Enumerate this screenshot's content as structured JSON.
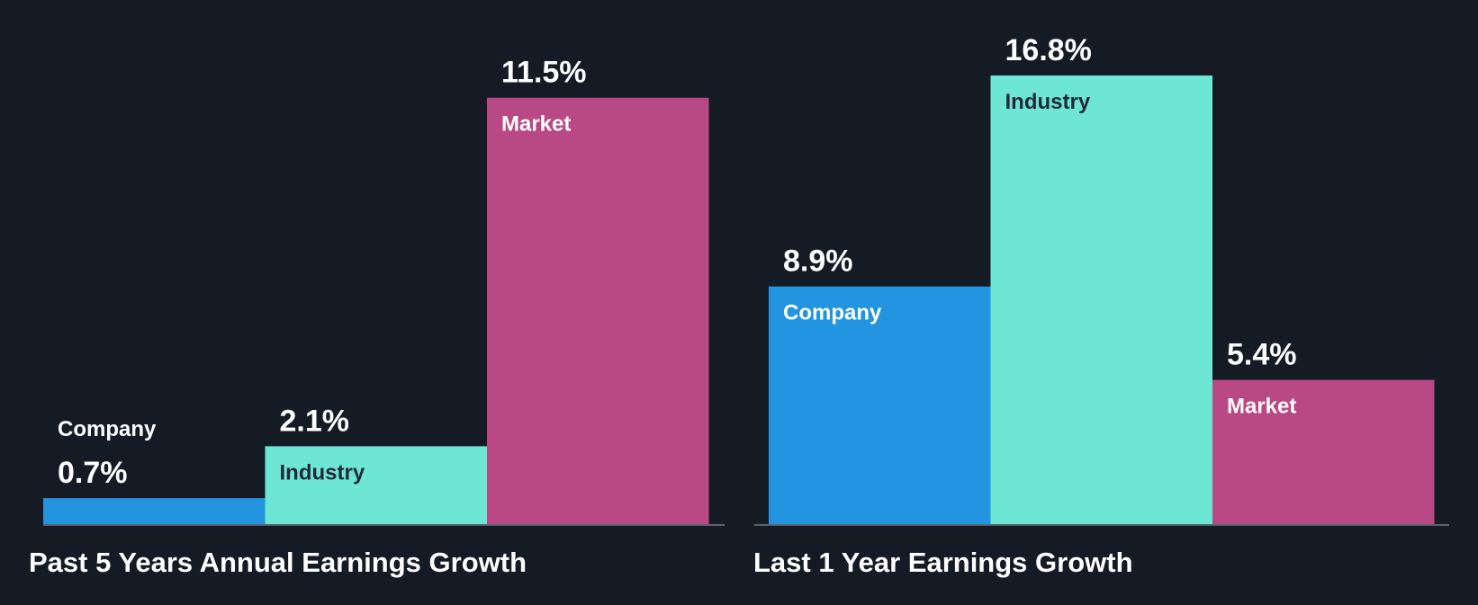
{
  "colors": {
    "background": "#151b24",
    "company": "#2394e0",
    "industry": "#6ee6d5",
    "market": "#b94985",
    "axis": "#5a6270",
    "text_light": "#ffffff",
    "text_dark": "#1f2a36"
  },
  "chart_data": [
    {
      "type": "bar",
      "title": "Past 5 Years Annual Earnings Growth",
      "categories": [
        "Company",
        "Industry",
        "Market"
      ],
      "values": [
        0.7,
        2.1,
        11.5
      ],
      "value_labels": [
        "0.7%",
        "2.1%",
        "11.5%"
      ],
      "unit": "%",
      "ylim": [
        0,
        12.1
      ],
      "grid": false,
      "legend": "none"
    },
    {
      "type": "bar",
      "title": "Last 1 Year Earnings Growth",
      "categories": [
        "Company",
        "Industry",
        "Market"
      ],
      "values": [
        8.9,
        16.8,
        5.4
      ],
      "value_labels": [
        "8.9%",
        "16.8%",
        "5.4%"
      ],
      "unit": "%",
      "ylim": [
        0,
        16.8
      ],
      "grid": false,
      "legend": "none"
    }
  ]
}
